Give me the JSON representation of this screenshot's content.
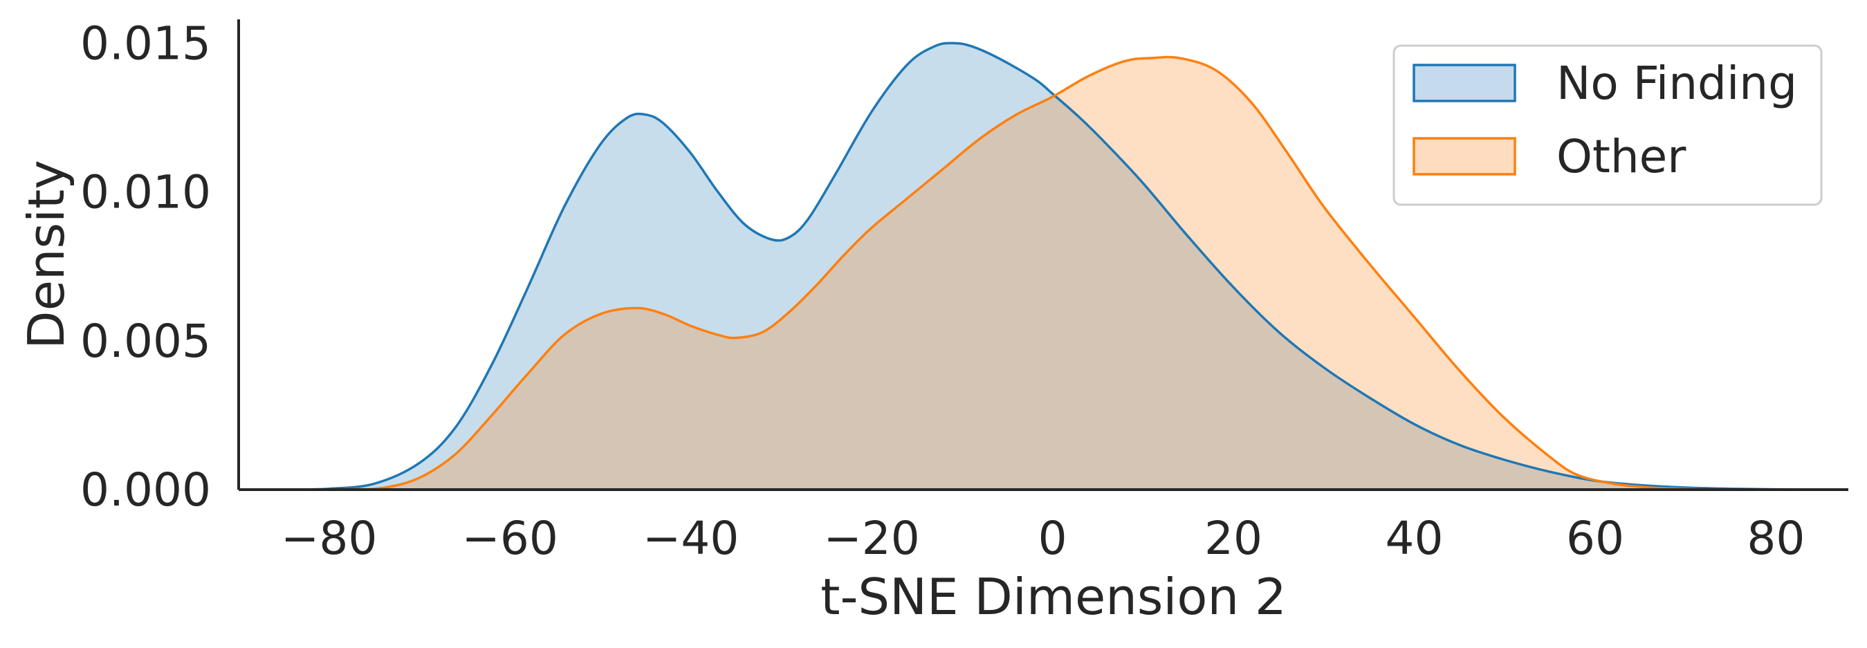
{
  "chart_data": {
    "type": "area",
    "xlabel": "t-SNE Dimension 2",
    "ylabel": "Density",
    "xlim": [
      -90,
      88
    ],
    "ylim": [
      0,
      0.0158
    ],
    "x_ticks": [
      -80,
      -60,
      -40,
      -20,
      0,
      20,
      40,
      60,
      80
    ],
    "x_tick_labels": [
      "−80",
      "−60",
      "−40",
      "−20",
      "0",
      "20",
      "40",
      "60",
      "80"
    ],
    "y_ticks": [
      0,
      0.005,
      0.01,
      0.015
    ],
    "y_tick_labels": [
      "0.000",
      "0.005",
      "0.010",
      "0.015"
    ],
    "grid": false,
    "legend_position": "top-right",
    "series": [
      {
        "name": "No Finding",
        "color": "#1f77b4",
        "fill": "#c5dbed",
        "x": [
          -84,
          -80,
          -75,
          -70,
          -66,
          -62,
          -58,
          -54,
          -50,
          -47,
          -45,
          -43,
          -40,
          -37,
          -34,
          -31,
          -29,
          -27,
          -24,
          -20,
          -16,
          -13,
          -11,
          -9,
          -6,
          -2,
          0,
          3,
          6,
          10,
          15,
          20,
          25,
          30,
          35,
          40,
          45,
          50,
          55,
          60,
          65,
          70,
          75,
          80,
          86
        ],
        "y": [
          0.0,
          3e-05,
          0.0002,
          0.0009,
          0.0021,
          0.0042,
          0.0068,
          0.0095,
          0.0116,
          0.0125,
          0.0126,
          0.0123,
          0.0113,
          0.01,
          0.0089,
          0.0084,
          0.0085,
          0.0091,
          0.0106,
          0.0127,
          0.0143,
          0.0149,
          0.015,
          0.0149,
          0.0145,
          0.0138,
          0.0133,
          0.0125,
          0.0116,
          0.0103,
          0.0085,
          0.0068,
          0.0053,
          0.0041,
          0.0031,
          0.0022,
          0.0015,
          0.001,
          0.0006,
          0.0003,
          0.00015,
          7e-05,
          3e-05,
          1e-05,
          0.0
        ]
      },
      {
        "name": "Other",
        "color": "#ff7f0e",
        "fill": "#fedcbf",
        "x": [
          -84,
          -78,
          -74,
          -70,
          -66,
          -62,
          -58,
          -54,
          -50,
          -46,
          -43,
          -40,
          -37,
          -35,
          -32,
          -29,
          -26,
          -23,
          -20,
          -16,
          -12,
          -8,
          -4,
          0,
          4,
          8,
          11,
          14,
          18,
          22,
          26,
          30,
          35,
          40,
          45,
          50,
          55,
          58,
          62,
          66,
          70,
          75,
          80,
          86
        ],
        "y": [
          0.0,
          1e-05,
          6e-05,
          0.0004,
          0.0012,
          0.0025,
          0.0039,
          0.0052,
          0.0059,
          0.0061,
          0.0059,
          0.0055,
          0.0052,
          0.0051,
          0.0053,
          0.006,
          0.0069,
          0.0079,
          0.0088,
          0.0098,
          0.0108,
          0.0118,
          0.0126,
          0.0132,
          0.0139,
          0.0144,
          0.0145,
          0.0145,
          0.0141,
          0.013,
          0.0113,
          0.0095,
          0.0076,
          0.0058,
          0.004,
          0.0024,
          0.0011,
          0.0005,
          0.0002,
          7e-05,
          2e-05,
          0.0,
          0.0,
          0.0
        ]
      }
    ]
  }
}
